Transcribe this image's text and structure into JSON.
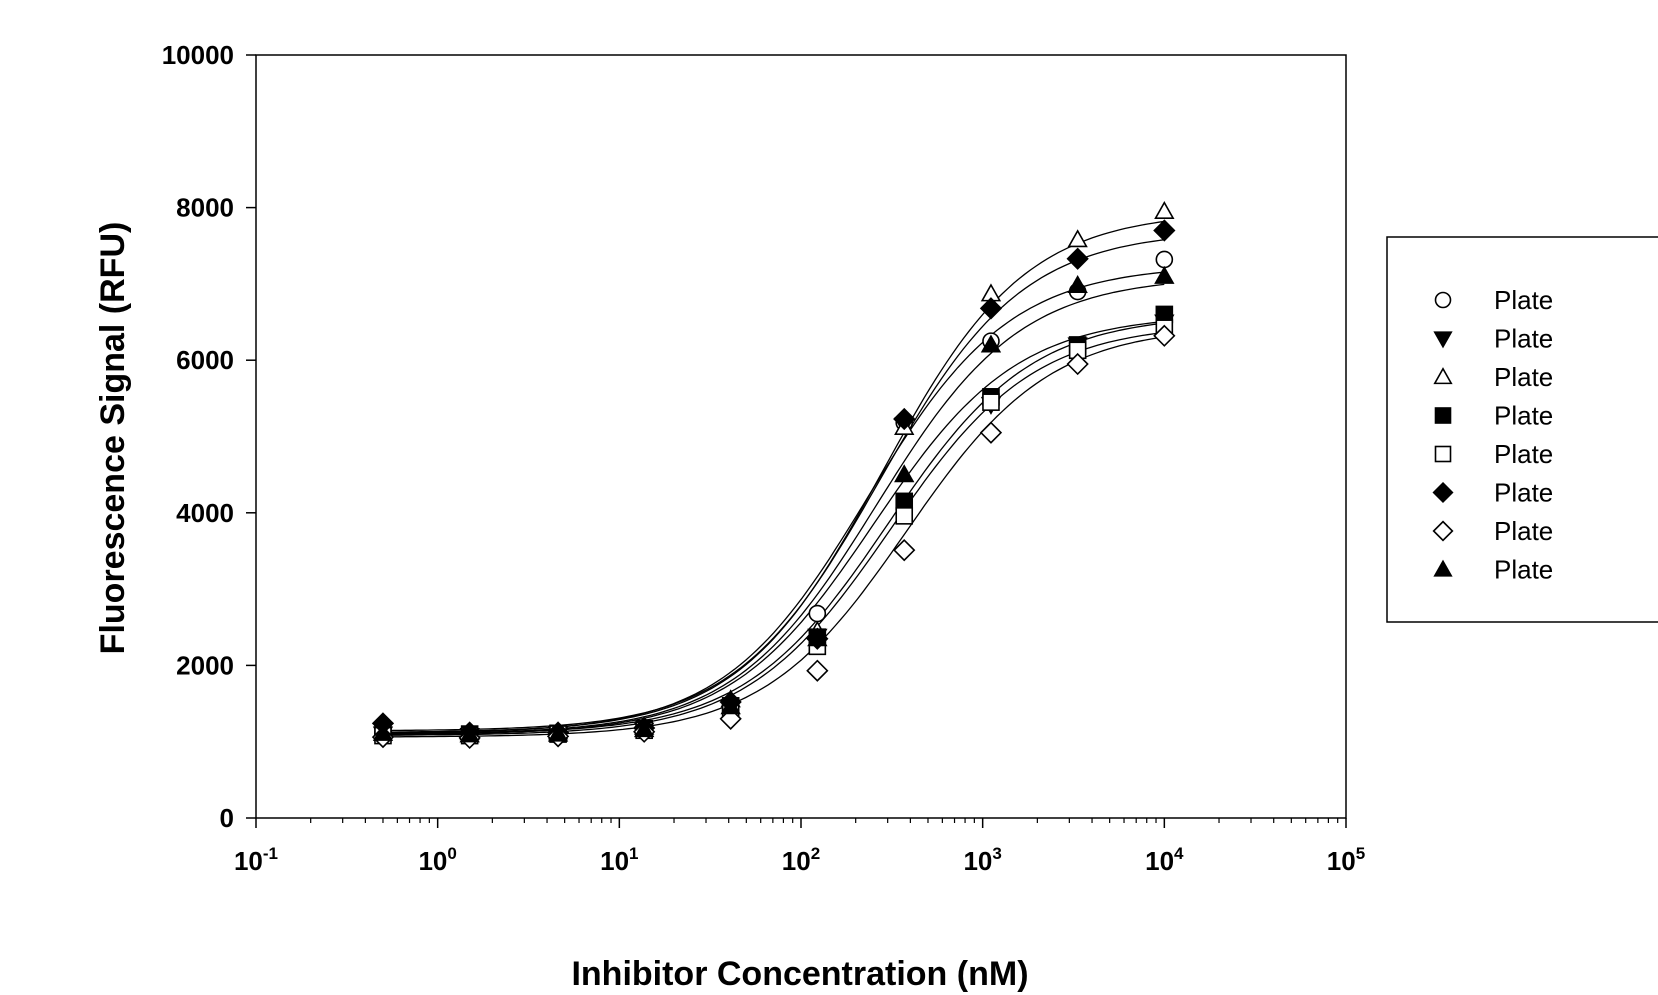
{
  "chart_data": {
    "type": "scatter",
    "title": "",
    "xlabel": "Inhibitor Concentration (nM)",
    "ylabel": "Fluorescence Signal (RFU)",
    "x_scale": "log",
    "xlim": [
      0.1,
      100000
    ],
    "ylim": [
      0,
      10000
    ],
    "x_tick_labels": [
      {
        "base": "10",
        "exp": "-1",
        "value": 0.1
      },
      {
        "base": "10",
        "exp": "0",
        "value": 1
      },
      {
        "base": "10",
        "exp": "1",
        "value": 10
      },
      {
        "base": "10",
        "exp": "2",
        "value": 100
      },
      {
        "base": "10",
        "exp": "3",
        "value": 1000
      },
      {
        "base": "10",
        "exp": "4",
        "value": 10000
      },
      {
        "base": "10",
        "exp": "5",
        "value": 100000
      }
    ],
    "y_ticks": [
      0,
      2000,
      4000,
      6000,
      8000,
      10000
    ],
    "y_tick_labels": [
      "0",
      "2000",
      "4000",
      "6000",
      "8000",
      "10000"
    ],
    "grid": false,
    "legend_position": "right",
    "x": [
      0.5,
      1.5,
      4.6,
      13.7,
      41,
      123,
      370,
      1111,
      3333,
      10000
    ],
    "series": [
      {
        "name": "Plate",
        "marker": "circle-open",
        "values": [
          1120,
          1100,
          1110,
          1160,
          1480,
          2680,
          5180,
          6250,
          6900,
          7320
        ],
        "fit": {
          "bottom": 1110,
          "top": 7250,
          "ec50": 230,
          "hill": 1.1
        }
      },
      {
        "name": "Plate",
        "marker": "triangle-down-filled",
        "values": [
          1100,
          1080,
          1100,
          1150,
          1450,
          2380,
          5150,
          5420,
          6200,
          6500
        ],
        "fit": {
          "bottom": 1090,
          "top": 6600,
          "ec50": 250,
          "hill": 1.1
        }
      },
      {
        "name": "Plate",
        "marker": "triangle-up-open",
        "values": [
          1150,
          1120,
          1130,
          1190,
          1550,
          2450,
          5120,
          6870,
          7580,
          7950
        ],
        "fit": {
          "bottom": 1120,
          "top": 7950,
          "ec50": 280,
          "hill": 1.1
        }
      },
      {
        "name": "Plate",
        "marker": "square-filled",
        "values": [
          1120,
          1100,
          1110,
          1170,
          1470,
          2370,
          4150,
          5520,
          6200,
          6600
        ],
        "fit": {
          "bottom": 1100,
          "top": 6600,
          "ec50": 300,
          "hill": 1.1
        }
      },
      {
        "name": "Plate",
        "marker": "square-open",
        "values": [
          1080,
          1080,
          1100,
          1150,
          1420,
          2250,
          3960,
          5450,
          6130,
          6420
        ],
        "fit": {
          "bottom": 1080,
          "top": 6480,
          "ec50": 310,
          "hill": 1.1
        }
      },
      {
        "name": "Plate",
        "marker": "diamond-filled",
        "values": [
          1240,
          1120,
          1120,
          1180,
          1520,
          2350,
          5230,
          6680,
          7330,
          7700
        ],
        "fit": {
          "bottom": 1140,
          "top": 7700,
          "ec50": 270,
          "hill": 1.1
        }
      },
      {
        "name": "Plate",
        "marker": "diamond-open",
        "values": [
          1060,
          1050,
          1070,
          1130,
          1300,
          1930,
          3510,
          5050,
          5950,
          6320
        ],
        "fit": {
          "bottom": 1060,
          "top": 6450,
          "ec50": 380,
          "hill": 1.1
        }
      },
      {
        "name": "Plate",
        "marker": "triangle-up-filled",
        "values": [
          1110,
          1090,
          1100,
          1160,
          1460,
          2350,
          4500,
          6200,
          6980,
          7100
        ],
        "fit": {
          "bottom": 1100,
          "top": 7100,
          "ec50": 260,
          "hill": 1.1
        }
      }
    ]
  }
}
